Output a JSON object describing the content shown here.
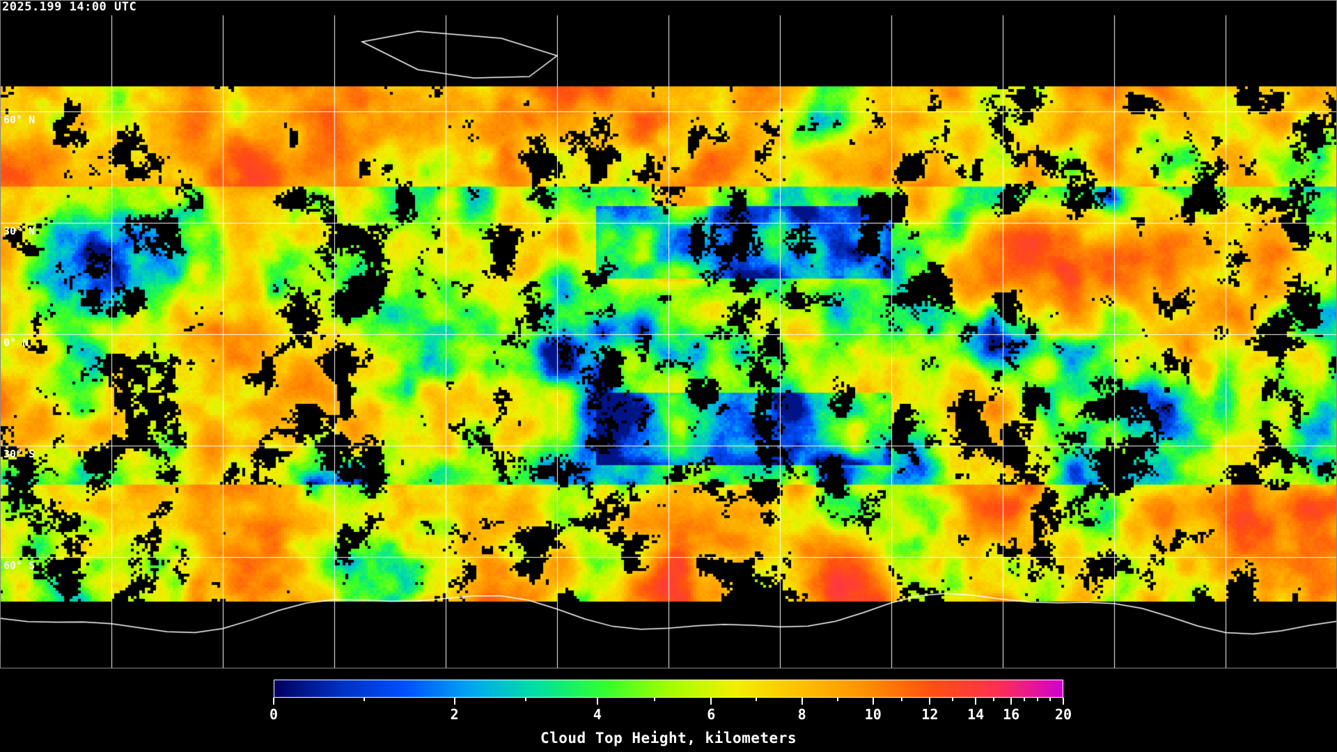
{
  "timestamp": "2025.199 14:00 UTC",
  "map": {
    "projection": "equirectangular",
    "gridlines": {
      "longitude_step_deg": 30,
      "latitude_step_deg": 30,
      "color": "#ffffff"
    },
    "lat_labels": [
      "60° N",
      "30° N",
      "0° N",
      "30° S",
      "60° S"
    ],
    "lat_values": [
      60,
      30,
      0,
      -30,
      -60
    ],
    "clear_sky_color": "#000000",
    "coastline_color": "#ffffff"
  },
  "colorbar": {
    "title": "Cloud Top Height, kilometers",
    "min": 0,
    "max": 20,
    "tick_labels": [
      "0",
      "2",
      "4",
      "6",
      "8",
      "10",
      "12",
      "14",
      "16",
      "20"
    ],
    "colors": [
      "#000060",
      "#0030c0",
      "#0050ff",
      "#00a8f0",
      "#00e0a0",
      "#30ff30",
      "#a0ff00",
      "#f0f000",
      "#ffc000",
      "#ff9000",
      "#ff5010",
      "#ff3050",
      "#d000d0"
    ]
  }
}
